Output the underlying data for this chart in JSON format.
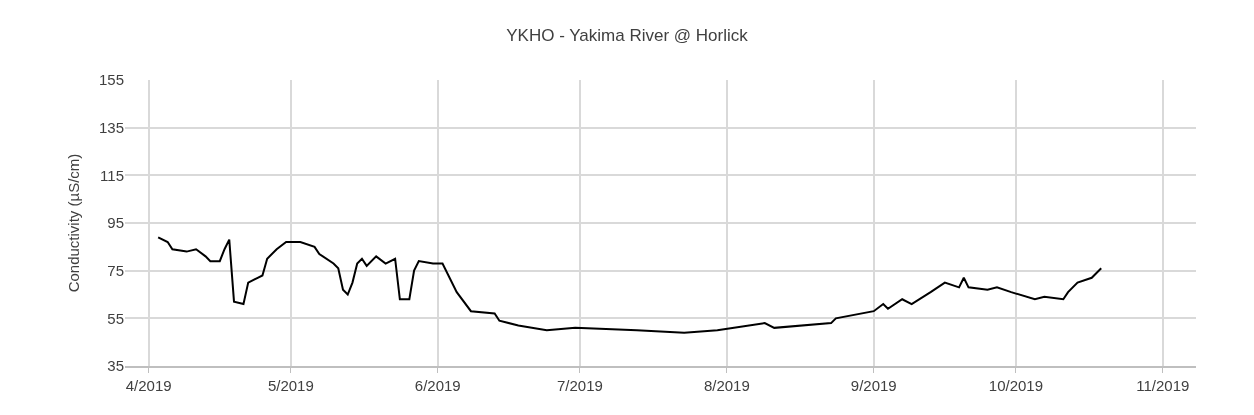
{
  "chart_data": {
    "type": "line",
    "title": "YKHO - Yakima River @ Horlick",
    "ylabel": "Conductivity (µS/cm)",
    "x": [
      "2019-04-03",
      "2019-04-05",
      "2019-04-06",
      "2019-04-09",
      "2019-04-11",
      "2019-04-13",
      "2019-04-14",
      "2019-04-16",
      "2019-04-17",
      "2019-04-18",
      "2019-04-19",
      "2019-04-21",
      "2019-04-22",
      "2019-04-24",
      "2019-04-25",
      "2019-04-26",
      "2019-04-28",
      "2019-04-30",
      "2019-05-03",
      "2019-05-06",
      "2019-05-07",
      "2019-05-10",
      "2019-05-11",
      "2019-05-12",
      "2019-05-13",
      "2019-05-14",
      "2019-05-15",
      "2019-05-16",
      "2019-05-17",
      "2019-05-19",
      "2019-05-21",
      "2019-05-23",
      "2019-05-24",
      "2019-05-26",
      "2019-05-27",
      "2019-05-28",
      "2019-05-31",
      "2019-06-02",
      "2019-06-05",
      "2019-06-08",
      "2019-06-13",
      "2019-06-14",
      "2019-06-18",
      "2019-06-24",
      "2019-06-30",
      "2019-07-13",
      "2019-07-23",
      "2019-07-30",
      "2019-08-09",
      "2019-08-11",
      "2019-08-23",
      "2019-08-24",
      "2019-09-01",
      "2019-09-03",
      "2019-09-04",
      "2019-09-07",
      "2019-09-09",
      "2019-09-13",
      "2019-09-16",
      "2019-09-19",
      "2019-09-20",
      "2019-09-21",
      "2019-09-25",
      "2019-09-27",
      "2019-09-30",
      "2019-10-05",
      "2019-10-07",
      "2019-10-11",
      "2019-10-12",
      "2019-10-14",
      "2019-10-17",
      "2019-10-19"
    ],
    "series": [
      {
        "color": "#000000",
        "values": [
          89,
          87,
          84,
          83,
          84,
          81,
          79,
          79,
          84,
          88,
          62,
          61,
          70,
          72,
          73,
          80,
          84,
          87,
          87,
          85,
          82,
          78,
          76,
          67,
          65,
          70,
          78,
          80,
          77,
          81,
          78,
          80,
          63,
          63,
          75,
          79,
          78,
          78,
          66,
          58,
          57,
          54,
          52,
          50,
          51,
          50,
          49,
          50,
          53,
          51,
          53,
          55,
          58,
          61,
          59,
          63,
          61,
          66,
          70,
          68,
          72,
          68,
          67,
          68,
          66,
          63,
          64,
          63,
          66,
          70,
          72,
          76
        ]
      }
    ],
    "xlim": [
      "2019-03-27",
      "2019-11-08"
    ],
    "xticks": [
      {
        "value": "2019-04-01",
        "label": "4/2019"
      },
      {
        "value": "2019-05-01",
        "label": "5/2019"
      },
      {
        "value": "2019-06-01",
        "label": "6/2019"
      },
      {
        "value": "2019-07-01",
        "label": "7/2019"
      },
      {
        "value": "2019-08-01",
        "label": "8/2019"
      },
      {
        "value": "2019-09-01",
        "label": "9/2019"
      },
      {
        "value": "2019-10-01",
        "label": "10/2019"
      },
      {
        "value": "2019-11-01",
        "label": "11/2019"
      }
    ],
    "ylim": [
      35,
      155
    ],
    "yticks": [
      35,
      55,
      75,
      95,
      115,
      135,
      155
    ],
    "grid": true,
    "marker": "none",
    "line_style": "solid"
  }
}
